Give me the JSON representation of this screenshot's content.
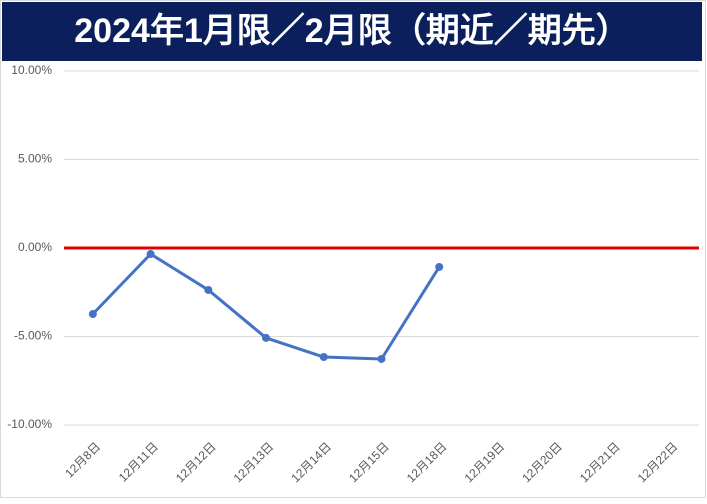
{
  "chart_data": {
    "type": "line",
    "title": "2024年1月限／2月限（期近／期先）",
    "categories": [
      "12月8日",
      "12月11日",
      "12月12日",
      "12月13日",
      "12月14日",
      "12月15日",
      "12月18日",
      "12月19日",
      "12月20日",
      "12月21日",
      "12月22日"
    ],
    "series": [
      {
        "color": "#4472c4",
        "values": [
          -3.73,
          -0.34,
          -2.37,
          -5.08,
          -6.16,
          -6.27,
          -1.07,
          null,
          null,
          null,
          null
        ]
      }
    ],
    "ylim": [
      -10,
      10
    ],
    "yticks": [
      {
        "value": -10,
        "label": "-10.00%"
      },
      {
        "value": -5,
        "label": "-5.00%"
      },
      {
        "value": 0,
        "label": "0.00%"
      },
      {
        "value": 5,
        "label": "5.00%"
      },
      {
        "value": 10,
        "label": "10.00%"
      }
    ],
    "grid": true,
    "reference_line": {
      "value": 0,
      "color": "#e00000"
    }
  }
}
